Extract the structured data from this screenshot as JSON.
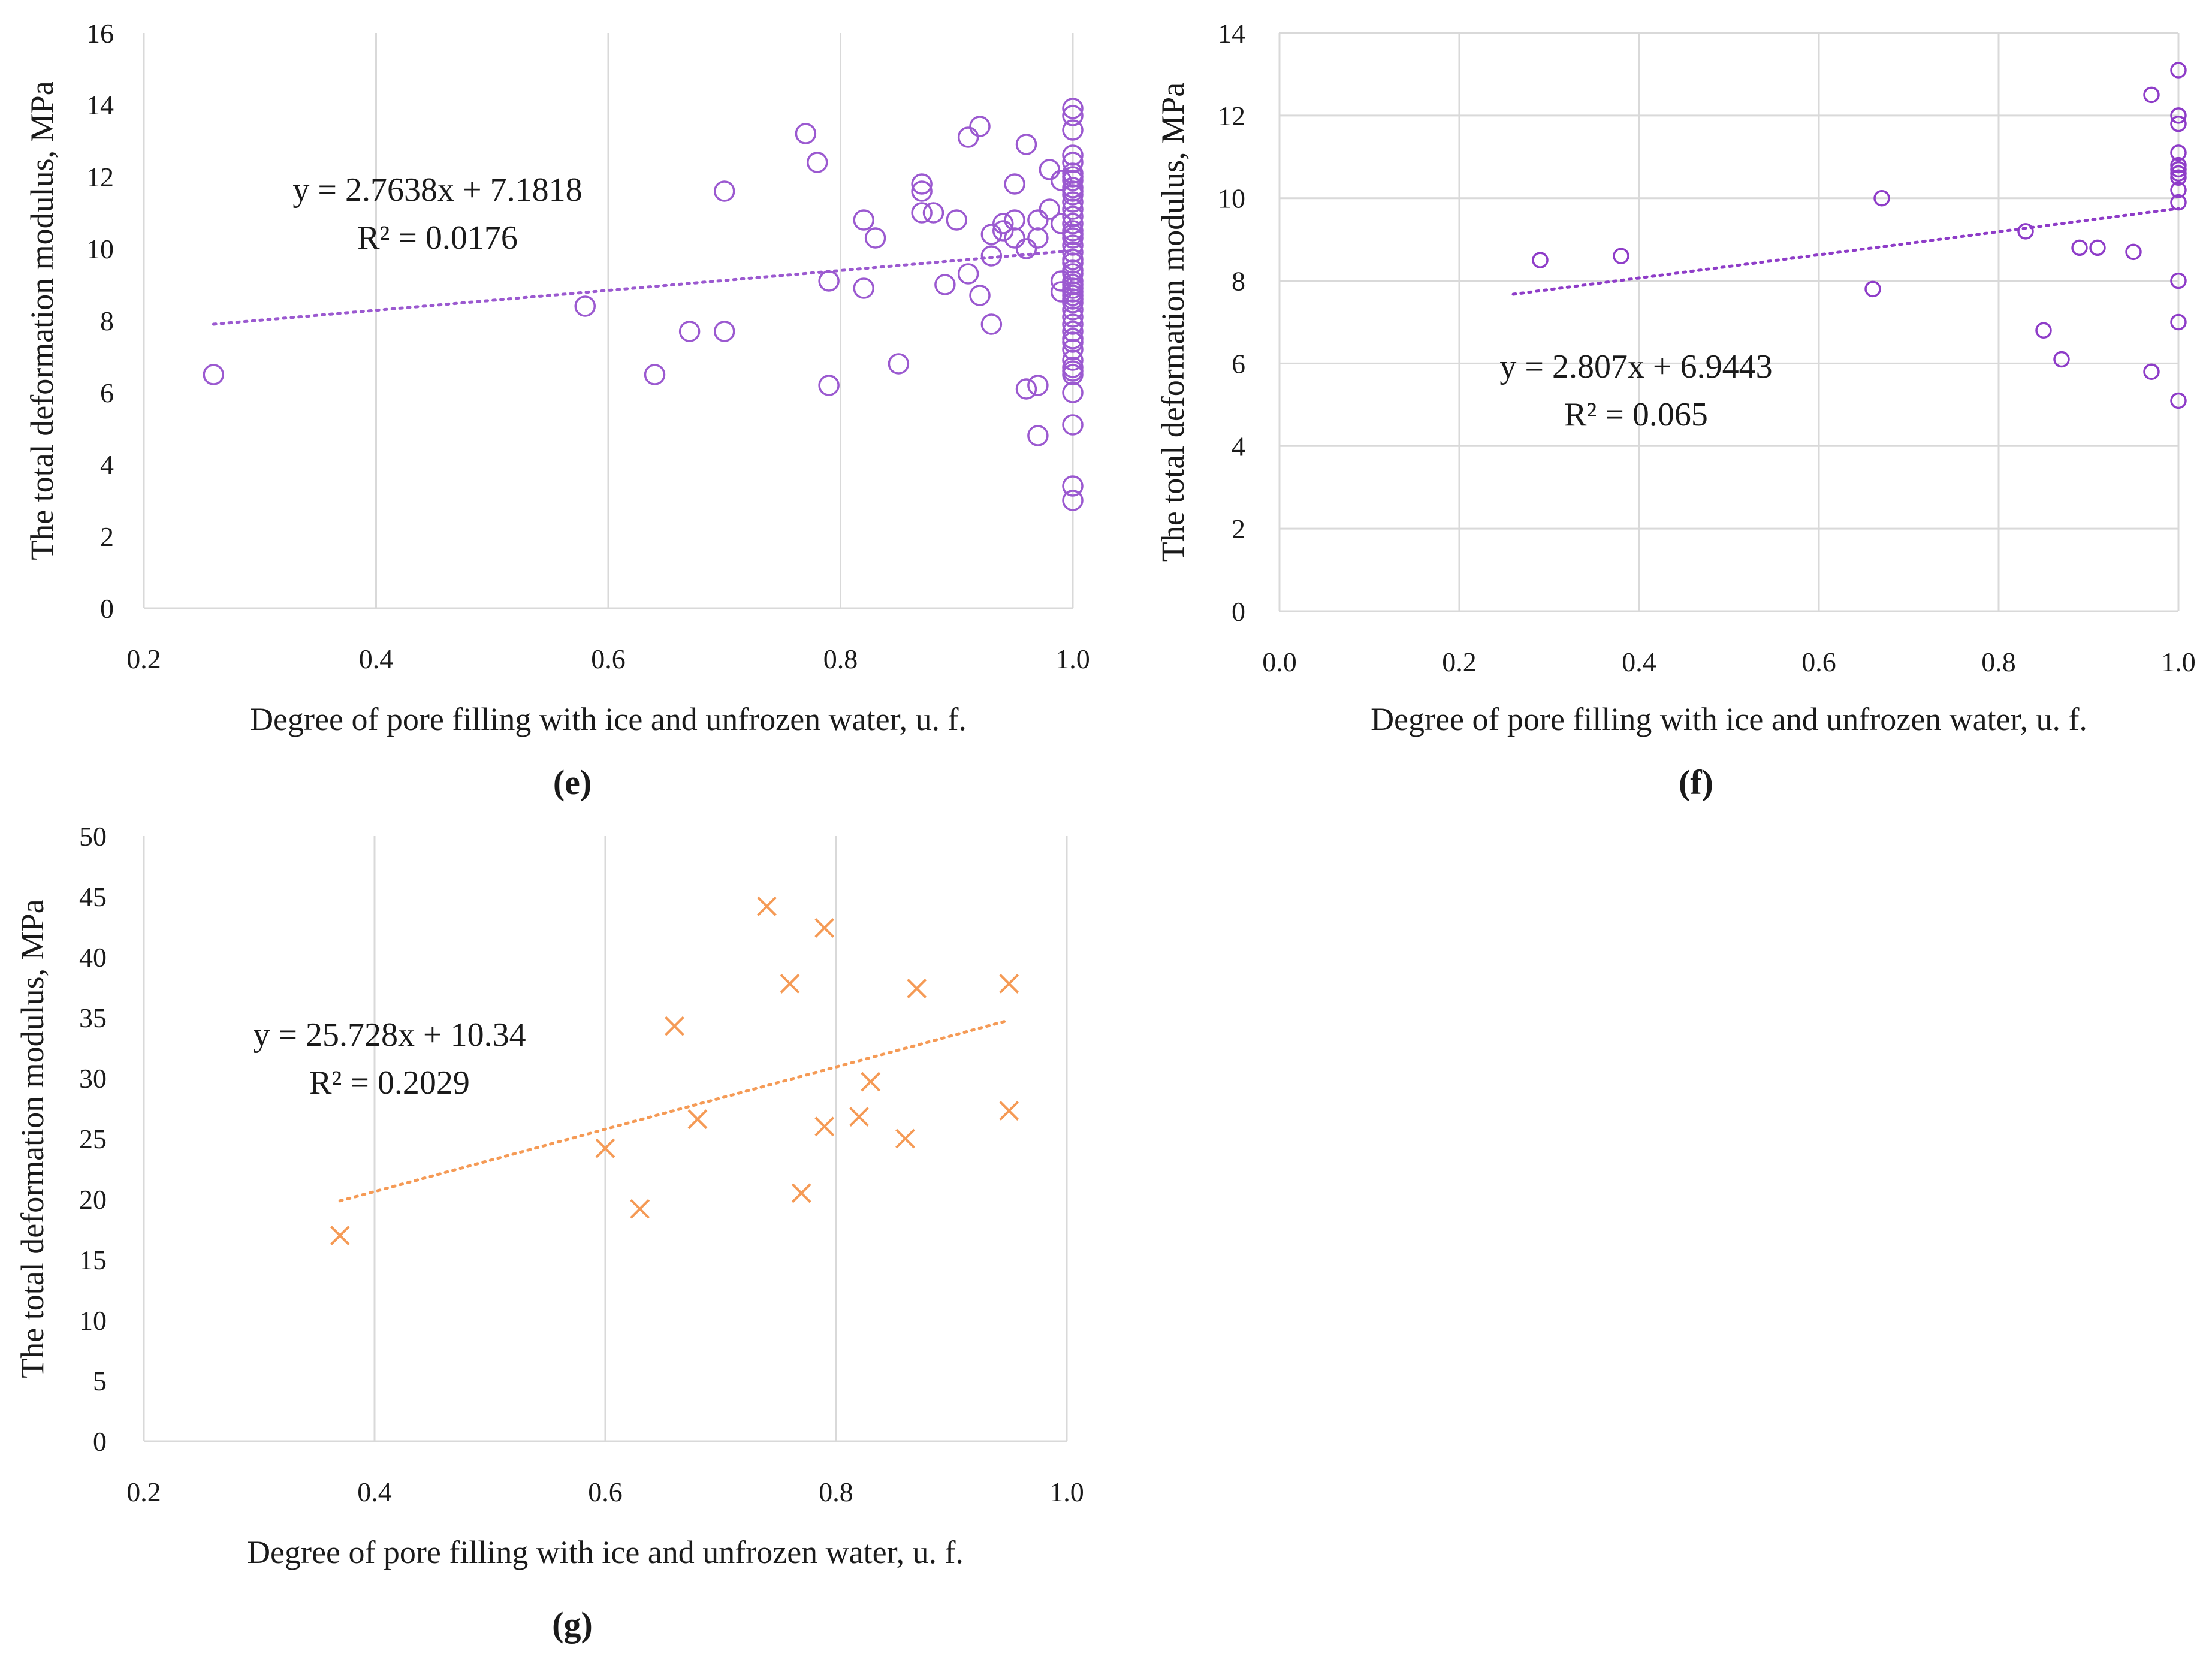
{
  "chart_data": [
    {
      "type": "scatter",
      "panel_label": "(e)",
      "xlabel": "Degree of pore filling with ice and unfrozen water, u. f.",
      "ylabel": "The total deformation modulus, MPa",
      "xlim": [
        0.2,
        1.0
      ],
      "ylim": [
        0,
        16
      ],
      "xticks": [
        0.2,
        0.4,
        0.6,
        0.8,
        1.0
      ],
      "yticks": [
        0,
        2,
        4,
        6,
        8,
        10,
        12,
        14,
        16
      ],
      "xtick_labels": [
        "0.2",
        "0.4",
        "0.6",
        "0.8",
        "1.0"
      ],
      "ytick_labels": [
        "0",
        "2",
        "4",
        "6",
        "8",
        "10",
        "12",
        "14",
        "16"
      ],
      "grid": "vertical",
      "marker": "circle",
      "color": "#9b59d0",
      "trendline": {
        "slope": 2.7638,
        "intercept": 7.1818,
        "x_range": [
          0.26,
          1.0
        ],
        "equation_text": "y = 2.7638x + 7.1818",
        "r2_text": "R² = 0.0176"
      },
      "series": [
        {
          "x": [
            0.26,
            0.58,
            0.64,
            0.67,
            0.7,
            0.7,
            0.77,
            0.78,
            0.79,
            0.79,
            0.82,
            0.82,
            0.83,
            0.85,
            0.87,
            0.87,
            0.87,
            0.88,
            0.89,
            0.9,
            0.91,
            0.91,
            0.92,
            0.92,
            0.93,
            0.93,
            0.93,
            0.94,
            0.94,
            0.95,
            0.95,
            0.95,
            0.96,
            0.96,
            0.96,
            0.97,
            0.97,
            0.97,
            0.97,
            0.98,
            0.98,
            0.99,
            0.99,
            0.99,
            0.99,
            1.0,
            1.0,
            1.0,
            1.0,
            1.0,
            1.0,
            1.0,
            1.0,
            1.0,
            1.0,
            1.0,
            1.0,
            1.0,
            1.0,
            1.0,
            1.0,
            1.0,
            1.0,
            1.0,
            1.0,
            1.0,
            1.0,
            1.0,
            1.0,
            1.0,
            1.0,
            1.0,
            1.0,
            1.0,
            1.0,
            1.0,
            1.0,
            1.0,
            1.0,
            1.0,
            1.0,
            1.0,
            1.0,
            1.0,
            1.0,
            1.0,
            1.0,
            1.0,
            1.0,
            1.0,
            1.0
          ],
          "y": [
            6.5,
            8.4,
            6.5,
            7.7,
            7.7,
            11.6,
            13.2,
            12.4,
            9.1,
            6.2,
            10.8,
            8.9,
            10.3,
            6.8,
            11.8,
            11.6,
            11.0,
            11.0,
            9.0,
            10.8,
            13.1,
            9.3,
            13.4,
            8.7,
            10.4,
            9.8,
            7.9,
            10.7,
            10.5,
            11.8,
            10.8,
            10.3,
            12.9,
            10.0,
            6.1,
            10.8,
            10.3,
            6.2,
            4.8,
            12.2,
            11.1,
            11.9,
            10.7,
            9.1,
            8.8,
            13.9,
            13.7,
            13.3,
            12.6,
            12.4,
            12.0,
            11.9,
            11.7,
            11.5,
            11.3,
            11.1,
            10.9,
            10.7,
            10.5,
            10.3,
            10.1,
            9.9,
            9.6,
            9.4,
            9.3,
            9.1,
            9.0,
            8.9,
            8.8,
            8.7,
            8.6,
            8.5,
            8.3,
            8.1,
            7.9,
            7.7,
            7.5,
            7.4,
            7.2,
            6.9,
            6.7,
            6.6,
            6.5,
            6.0,
            5.1,
            3.4,
            3.0,
            12.1,
            11.6,
            10.4,
            9.7
          ]
        }
      ]
    },
    {
      "type": "scatter",
      "panel_label": "(f)",
      "xlabel": "Degree of pore filling with ice and unfrozen water, u. f.",
      "ylabel": "The total deformation modulus, MPa",
      "xlim": [
        0.0,
        1.0
      ],
      "ylim": [
        0,
        14
      ],
      "xticks": [
        0.0,
        0.2,
        0.4,
        0.6,
        0.8,
        1.0
      ],
      "yticks": [
        0,
        2,
        4,
        6,
        8,
        10,
        12,
        14
      ],
      "xtick_labels": [
        "0.0",
        "0.2",
        "0.4",
        "0.6",
        "0.8",
        "1.0"
      ],
      "ytick_labels": [
        "0",
        "2",
        "4",
        "6",
        "8",
        "10",
        "12",
        "14"
      ],
      "grid": "both",
      "marker": "circle",
      "color": "#8e3cc8",
      "trendline": {
        "slope": 2.807,
        "intercept": 6.9443,
        "x_range": [
          0.26,
          1.0
        ],
        "equation_text": "y = 2.807x + 6.9443",
        "r2_text": "R² = 0.065"
      },
      "series": [
        {
          "x": [
            0.29,
            0.38,
            0.66,
            0.67,
            0.83,
            0.85,
            0.87,
            0.89,
            0.91,
            0.95,
            0.97,
            0.97,
            1.0,
            1.0,
            1.0,
            1.0,
            1.0,
            1.0,
            1.0,
            1.0,
            1.0,
            1.0,
            1.0,
            1.0,
            1.0
          ],
          "y": [
            8.5,
            8.6,
            7.8,
            10.0,
            9.2,
            6.8,
            6.1,
            8.8,
            8.8,
            8.7,
            12.5,
            5.8,
            13.1,
            12.0,
            11.8,
            11.1,
            10.8,
            10.7,
            10.6,
            10.5,
            10.2,
            9.9,
            8.0,
            7.0,
            5.1
          ]
        }
      ]
    },
    {
      "type": "scatter",
      "panel_label": "(g)",
      "xlabel": "Degree of pore filling with ice and unfrozen water, u. f.",
      "ylabel": "The total deformation modulus, MPa",
      "xlim": [
        0.2,
        1.0
      ],
      "ylim": [
        0,
        50
      ],
      "xticks": [
        0.2,
        0.4,
        0.6,
        0.8,
        1.0
      ],
      "yticks": [
        0,
        5,
        10,
        15,
        20,
        25,
        30,
        35,
        40,
        45,
        50
      ],
      "xtick_labels": [
        "0.2",
        "0.4",
        "0.6",
        "0.8",
        "1.0"
      ],
      "ytick_labels": [
        "0",
        "5",
        "10",
        "15",
        "20",
        "25",
        "30",
        "35",
        "40",
        "45",
        "50"
      ],
      "grid": "vertical",
      "marker": "cross",
      "color": "#f59a55",
      "trendline": {
        "slope": 25.728,
        "intercept": 10.34,
        "x_range": [
          0.37,
          0.95
        ],
        "equation_text": "y = 25.728x + 10.34",
        "r2_text": "R² = 0.2029"
      },
      "series": [
        {
          "x": [
            0.37,
            0.6,
            0.63,
            0.66,
            0.68,
            0.74,
            0.76,
            0.77,
            0.79,
            0.79,
            0.82,
            0.83,
            0.86,
            0.87,
            0.95,
            0.95
          ],
          "y": [
            17.0,
            24.2,
            19.2,
            34.3,
            26.6,
            44.2,
            37.8,
            20.5,
            42.4,
            26.0,
            26.8,
            29.7,
            25.0,
            37.4,
            37.8,
            27.3
          ]
        }
      ]
    }
  ]
}
